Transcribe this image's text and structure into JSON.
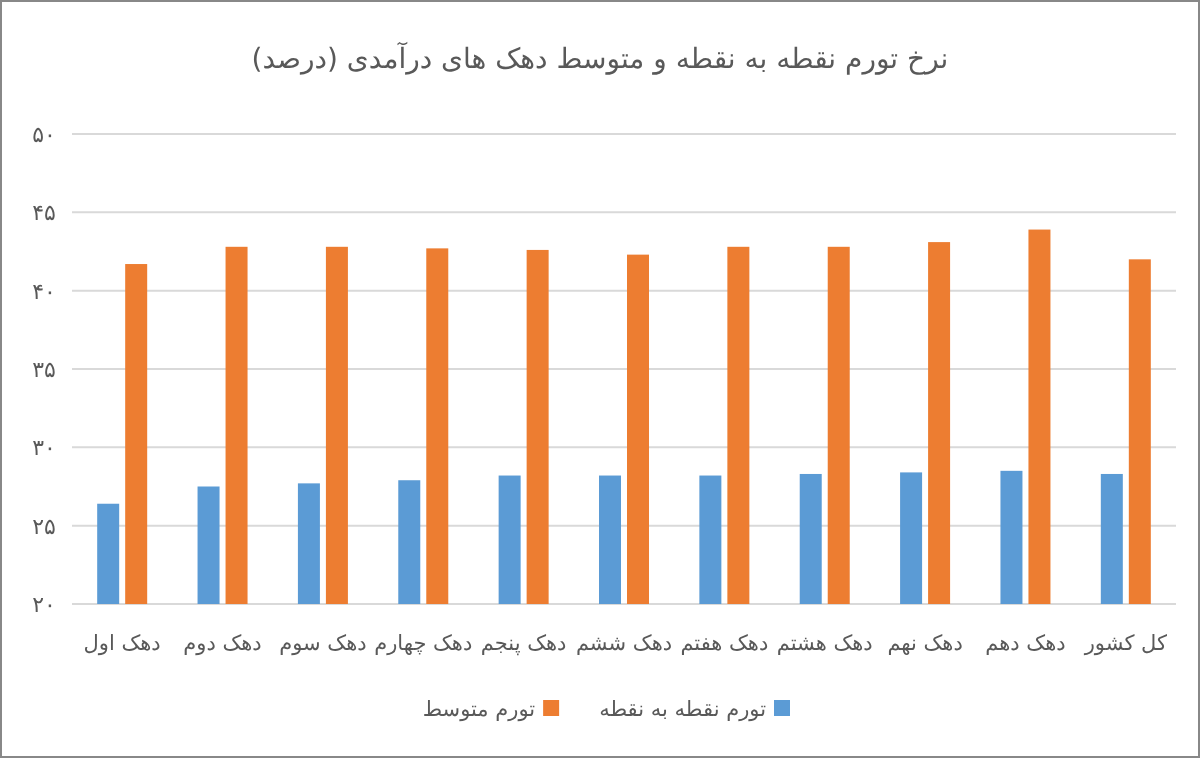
{
  "chart_data": {
    "type": "bar",
    "title": "نرخ تورم نقطه به نقطه و متوسط دهک های درآمدی (درصد)",
    "categories": [
      "دهک اول",
      "دهک دوم",
      "دهک سوم",
      "دهک چهارم",
      "دهک پنجم",
      "دهک ششم",
      "دهک هفتم",
      "دهک هشتم",
      "دهک نهم",
      "دهک دهم",
      "کل کشور"
    ],
    "series": [
      {
        "name": "تورم نقطه به نقطه",
        "color": "#5b9bd5",
        "values": [
          26.4,
          27.5,
          27.7,
          27.9,
          28.2,
          28.2,
          28.2,
          28.3,
          28.4,
          28.5,
          28.3
        ]
      },
      {
        "name": "تورم متوسط",
        "color": "#ed7d31",
        "values": [
          41.7,
          42.8,
          42.8,
          42.7,
          42.6,
          42.3,
          42.8,
          42.8,
          43.1,
          43.9,
          42.0
        ]
      }
    ],
    "ylim": [
      20,
      50
    ],
    "yticks": [
      {
        "value": 20,
        "label": "۲۰"
      },
      {
        "value": 25,
        "label": "۲۵"
      },
      {
        "value": 30,
        "label": "۳۰"
      },
      {
        "value": 35,
        "label": "۳۵"
      },
      {
        "value": 40,
        "label": "۴۰"
      },
      {
        "value": 45,
        "label": "۴۵"
      },
      {
        "value": 50,
        "label": "۵۰"
      }
    ],
    "grid": "y",
    "legend": "bottom"
  }
}
